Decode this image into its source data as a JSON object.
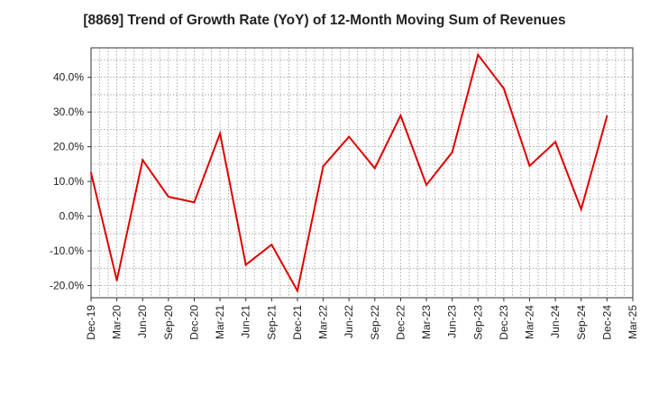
{
  "chart_data": {
    "type": "line",
    "title": "[8869]  Trend of Growth Rate (YoY) of 12-Month Moving Sum of Revenues",
    "xlabel": "",
    "ylabel": "",
    "x_tick_labels": [
      "Dec-19",
      "Mar-20",
      "Jun-20",
      "Sep-20",
      "Dec-20",
      "Mar-21",
      "Jun-21",
      "Sep-21",
      "Dec-21",
      "Mar-22",
      "Jun-22",
      "Sep-22",
      "Dec-22",
      "Mar-23",
      "Jun-23",
      "Sep-23",
      "Dec-23",
      "Mar-24",
      "Jun-24",
      "Sep-24",
      "Dec-24",
      "Mar-25"
    ],
    "y_ticks": [
      -20,
      -10,
      0,
      10,
      20,
      30,
      40
    ],
    "y_tick_labels": [
      "-20.0%",
      "-10.0%",
      "0.0%",
      "10.0%",
      "20.0%",
      "30.0%",
      "40.0%"
    ],
    "ylim": [
      -23.5,
      48.5
    ],
    "grid": true,
    "series": [
      {
        "color": "#e00000",
        "x": [
          "Dec-19",
          "Mar-20",
          "Jun-20",
          "Sep-20",
          "Dec-20",
          "Mar-21",
          "Jun-21",
          "Sep-21",
          "Dec-21",
          "Mar-22",
          "Jun-22",
          "Sep-22",
          "Dec-22",
          "Mar-23",
          "Jun-23",
          "Sep-23",
          "Dec-23",
          "Mar-24",
          "Jun-24",
          "Sep-24",
          "Dec-24"
        ],
        "values": [
          12.5,
          -18.5,
          16.2,
          5.6,
          4.0,
          23.8,
          -14.0,
          -8.2,
          -21.5,
          14.4,
          22.9,
          13.8,
          29.0,
          9.0,
          18.4,
          46.5,
          36.8,
          14.5,
          21.4,
          2.0,
          28.8
        ]
      }
    ]
  }
}
